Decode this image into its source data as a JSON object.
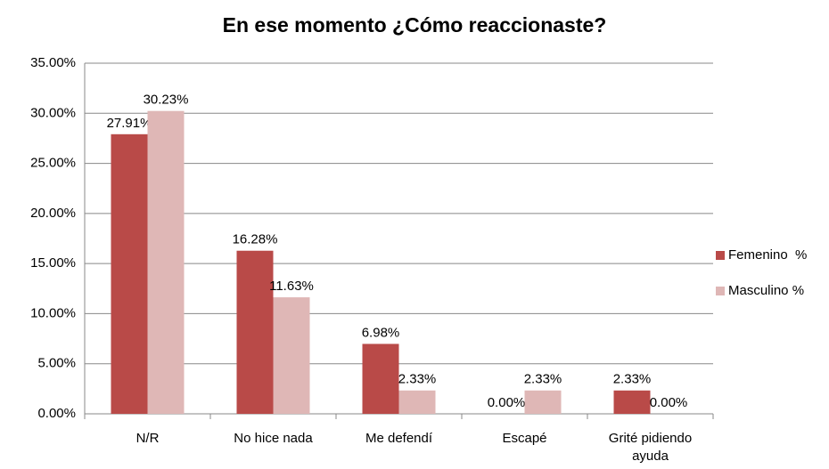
{
  "chart_data": {
    "type": "bar",
    "title": "En ese momento ¿Cómo reaccionaste?",
    "categories": [
      "N/R",
      "No hice nada",
      "Me defendí",
      "Escapé",
      "Grité pidiendo ayuda"
    ],
    "series": [
      {
        "name": "Femenino  %",
        "color": "#b94a48",
        "values": [
          27.91,
          16.28,
          6.98,
          0,
          2.33
        ],
        "value_labels": [
          "27.91%",
          "16.28%",
          "6.98%",
          "0.00%",
          "2.33%"
        ]
      },
      {
        "name": "Masculino %",
        "color": "#dfb7b6",
        "values": [
          30.23,
          11.63,
          2.33,
          2.33,
          0
        ],
        "value_labels": [
          "30.23%",
          "11.63%",
          "2.33%",
          "2.33%",
          "0.00%"
        ]
      }
    ],
    "ylim": [
      0,
      35
    ],
    "yticks": [
      {
        "value": 0,
        "label": "0.00%"
      },
      {
        "value": 5,
        "label": "5.00%"
      },
      {
        "value": 10,
        "label": "10.00%"
      },
      {
        "value": 15,
        "label": "15.00%"
      },
      {
        "value": 20,
        "label": "20.00%"
      },
      {
        "value": 25,
        "label": "25.00%"
      },
      {
        "value": 30,
        "label": "30.00%"
      },
      {
        "value": 35,
        "label": "35.00%"
      }
    ],
    "grid": true,
    "legend": "right"
  }
}
